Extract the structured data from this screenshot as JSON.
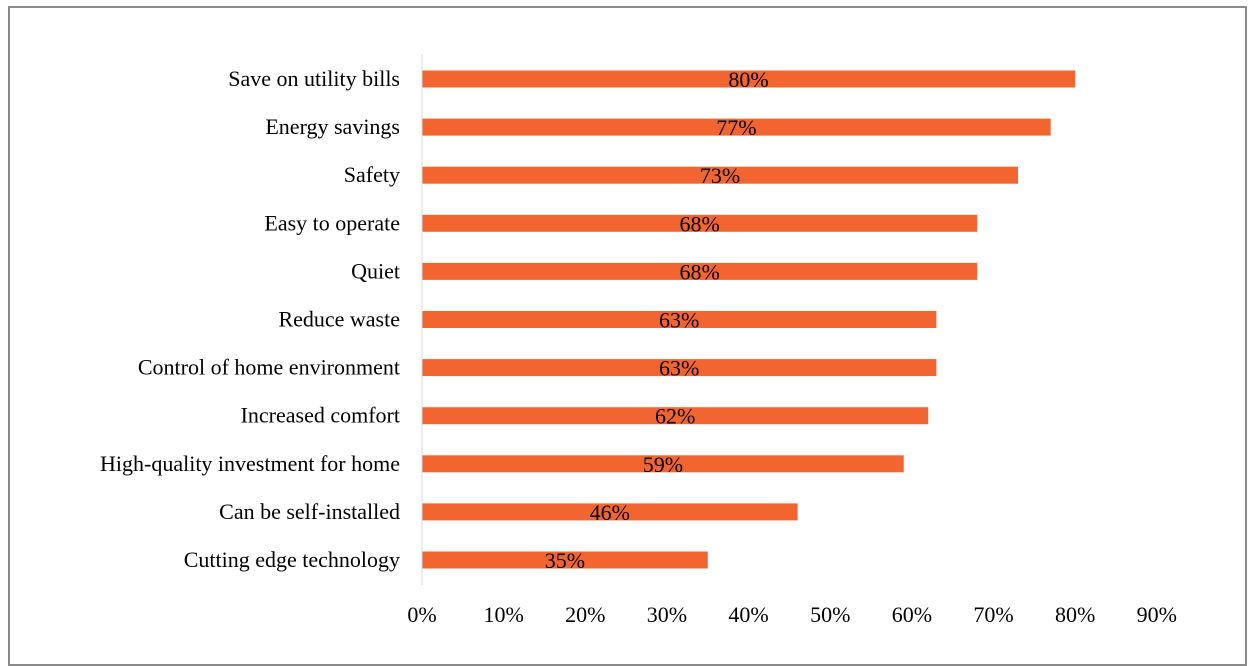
{
  "chart_data": {
    "type": "bar",
    "orientation": "horizontal",
    "title": "",
    "xlabel": "",
    "ylabel": "",
    "categories": [
      "Save on utility bills",
      "Energy savings",
      "Safety",
      "Easy to operate",
      "Quiet",
      "Reduce waste",
      "Control of home environment",
      "Increased comfort",
      "High-quality investment for home",
      "Can be self-installed",
      "Cutting edge technology"
    ],
    "values": [
      80,
      77,
      73,
      68,
      68,
      63,
      63,
      62,
      59,
      46,
      35
    ],
    "value_labels": [
      "80%",
      "77%",
      "73%",
      "68%",
      "68%",
      "63%",
      "63%",
      "62%",
      "59%",
      "46%",
      "35%"
    ],
    "xlim": [
      0,
      90
    ],
    "x_ticks": [
      0,
      10,
      20,
      30,
      40,
      50,
      60,
      70,
      80,
      90
    ],
    "x_tick_labels": [
      "0%",
      "10%",
      "20%",
      "30%",
      "40%",
      "50%",
      "60%",
      "70%",
      "80%",
      "90%"
    ],
    "bar_color": "#F26531",
    "grid": false,
    "legend": "none"
  }
}
